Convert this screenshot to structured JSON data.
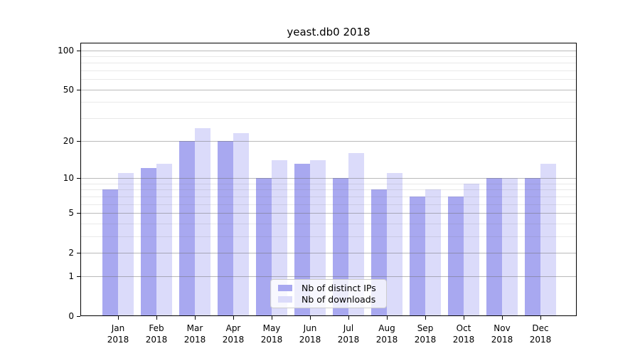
{
  "chart_data": {
    "type": "bar",
    "title": "yeast.db0 2018",
    "categories": [
      "Jan 2018",
      "Feb 2018",
      "Mar 2018",
      "Apr 2018",
      "May 2018",
      "Jun 2018",
      "Jul 2018",
      "Aug 2018",
      "Sep 2018",
      "Oct 2018",
      "Nov 2018",
      "Dec 2018"
    ],
    "months": [
      "Jan",
      "Feb",
      "Mar",
      "Apr",
      "May",
      "Jun",
      "Jul",
      "Aug",
      "Sep",
      "Oct",
      "Nov",
      "Dec"
    ],
    "year_label": "2018",
    "series": [
      {
        "name": "Nb of distinct IPs",
        "color": "#a8a8f0",
        "values": [
          8,
          12,
          20,
          20,
          10,
          13,
          10,
          8,
          7,
          7,
          10,
          10
        ]
      },
      {
        "name": "Nb of downloads",
        "color": "#dbdbfa",
        "values": [
          11,
          13,
          25,
          23,
          14,
          14,
          16,
          11,
          8,
          9,
          10,
          13
        ]
      }
    ],
    "xlabel": "",
    "ylabel": "",
    "y_scale": "log1p",
    "ylim": [
      0,
      114
    ],
    "y_ticks": [
      0,
      1,
      2,
      5,
      10,
      20,
      50,
      100
    ],
    "y_minor_gridlines": [
      3,
      4,
      6,
      7,
      8,
      9,
      30,
      40,
      60,
      70,
      80,
      90
    ],
    "grid": true,
    "legend_position": "inside-bottom-center"
  },
  "colors": {
    "bar_ips": "#a8a8f0",
    "bar_downloads": "#dbdbfa",
    "axis": "#000000",
    "grid_major": "#8f8f8f",
    "grid_minor": "#e3e3e3",
    "legend_border": "#cccccc"
  }
}
